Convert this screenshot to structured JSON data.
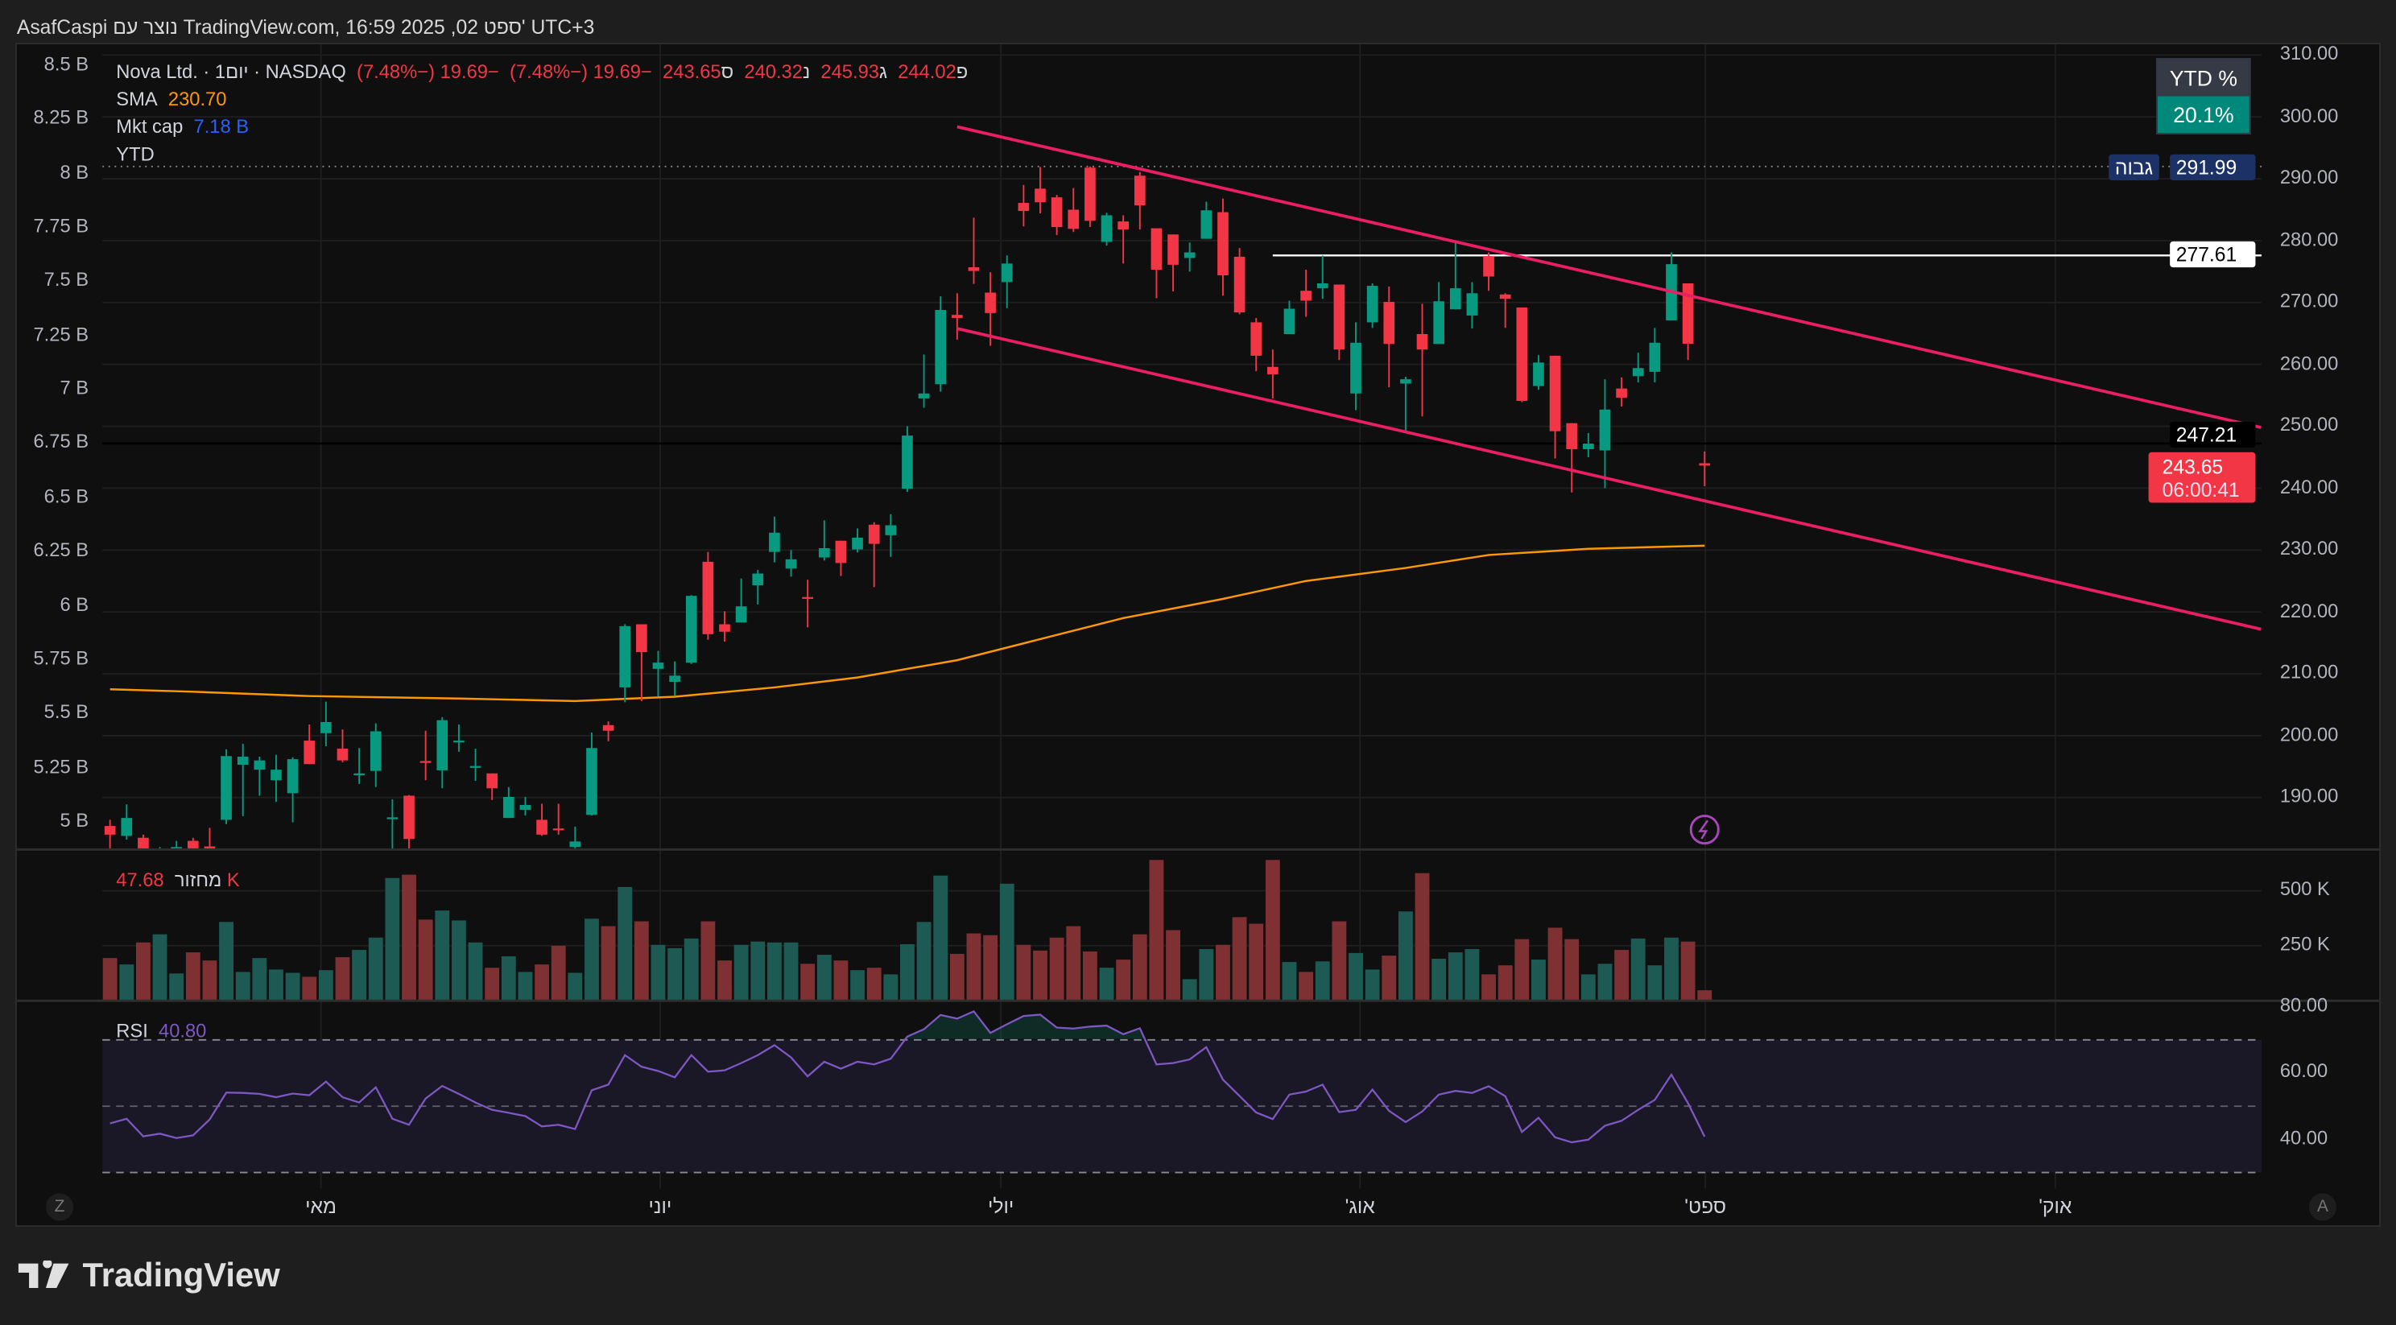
{
  "header": {
    "caption": "AsafCaspi נוצר עם TradingView.com, 16:59 2025 ,02 ספט' UTC+3"
  },
  "legend": {
    "symbol": "Nova Ltd. · 1יום · NASDAQ",
    "open_label": "פ",
    "open": "244.02",
    "high_label": "ג",
    "high": "245.93",
    "low_label": "נ",
    "low": "240.32",
    "close_label": "ס",
    "close": "243.65",
    "change": "−19.69 (−7.48%)",
    "change2": "−19.69 (−7.48%)",
    "sma_label": "SMA",
    "sma_value": "230.70",
    "mktcap_label": "Mkt cap",
    "mktcap_value": "7.18 B",
    "ytd_label": "YTD"
  },
  "ytd_box": {
    "title": "YTD %",
    "value": "20.1%"
  },
  "price_labels": {
    "high_tag": "גבוה",
    "high_value": "291.99",
    "hline_value": "277.61",
    "channel_value": "247.21",
    "last_price": "243.65",
    "countdown": "06:00:41"
  },
  "left_axis": [
    "8.5 B",
    "8.25 B",
    "8 B",
    "7.75 B",
    "7.5 B",
    "7.25 B",
    "7 B",
    "6.75 B",
    "6.5 B",
    "6.25 B",
    "6 B",
    "5.75 B",
    "5.5 B",
    "5.25 B",
    "5 B"
  ],
  "right_axis": [
    "310.00",
    "300.00",
    "290.00",
    "280.00",
    "270.00",
    "260.00",
    "250.00",
    "240.00",
    "230.00",
    "220.00",
    "210.00",
    "200.00",
    "190.00"
  ],
  "volume_pane": {
    "label": "מחזור",
    "value": "47.68 K",
    "axis": [
      "500 K",
      "250 K"
    ]
  },
  "rsi_pane": {
    "label": "RSI",
    "value": "40.80",
    "axis": [
      "80.00",
      "60.00",
      "40.00"
    ]
  },
  "time_axis": [
    "מאי",
    "יוני",
    "יולי",
    "אוג'",
    "ספט'",
    "אוק'"
  ],
  "corner_buttons": {
    "left": "Z",
    "right": "A"
  },
  "brand": "TradingView",
  "colors": {
    "up": "#089981",
    "down": "#f23645",
    "sma": "#ff9800",
    "rsi": "#7e57c2",
    "trend": "#e91e63",
    "vol_up": "#1d5a53",
    "vol_down": "#7f3032"
  },
  "chart_data": {
    "type": "candlestick",
    "title": "Nova Ltd. · 1D · NASDAQ",
    "ylim": [
      185,
      310
    ],
    "open": [
      185.4,
      183.8,
      183.5,
      179.5,
      180.5,
      183.0,
      182.1,
      186.4,
      195.3,
      194.5,
      192.8,
      190.7,
      199.2,
      200.4,
      197.9,
      193.8,
      194.3,
      186.7,
      190.3,
      195.9,
      194.4,
      199.1,
      195.0,
      193.9,
      186.7,
      188.0,
      186.4,
      185.0,
      182.0,
      187.2,
      201.7,
      207.8,
      218.0,
      210.8,
      208.7,
      211.8,
      228.1,
      218.0,
      218.3,
      224.3,
      229.7,
      227.0,
      222.4,
      228.8,
      231.5,
      230.1,
      234.1,
      232.4,
      239.9,
      254.5,
      256.8,
      268.0,
      275.7,
      271.6,
      273.3,
      286.1,
      288.4,
      287.0,
      285.0,
      291.8,
      279.8,
      283.1,
      290.5,
      282.0,
      281.0,
      277.2,
      280.3,
      284.6,
      277.4,
      266.8,
      259.6,
      264.9,
      271.9,
      272.3,
      272.9,
      255.3,
      266.8,
      270.1,
      256.9,
      264.9,
      263.3,
      268.9,
      267.9,
      277.5,
      271.3,
      269.2,
      256.5,
      261.4,
      250.5,
      246.3,
      246.1,
      256.1,
      258.1,
      258.8,
      267.1,
      273.1,
      244.02
    ],
    "high": [
      186.4,
      188.9,
      184.0,
      182.0,
      183.0,
      183.5,
      185.1,
      197.8,
      198.7,
      196.6,
      196.9,
      196.5,
      201.8,
      205.5,
      201.0,
      198.0,
      202.0,
      189.7,
      190.4,
      200.8,
      203.0,
      201.8,
      197.9,
      193.9,
      191.7,
      190.1,
      189.0,
      189.0,
      185.3,
      200.5,
      202.3,
      218.0,
      218.0,
      213.7,
      212.0,
      222.7,
      229.7,
      220.1,
      225.4,
      226.8,
      235.4,
      230.0,
      225.2,
      234.8,
      231.5,
      233.5,
      234.5,
      235.8,
      250.0,
      261.6,
      271.0,
      271.5,
      283.7,
      274.9,
      277.6,
      289.0,
      291.9,
      287.4,
      288.5,
      291.99,
      284.5,
      284.1,
      291.1,
      282.0,
      281.0,
      279.7,
      286.3,
      286.8,
      278.8,
      267.5,
      262.4,
      270.3,
      275.3,
      277.6,
      272.9,
      266.8,
      273.1,
      272.6,
      258.0,
      269.8,
      273.3,
      279.7,
      273.3,
      278.1,
      271.5,
      269.2,
      261.5,
      261.4,
      250.5,
      248.9,
      257.6,
      257.9,
      261.9,
      265.9,
      278.1,
      273.1,
      245.93
    ],
    "low": [
      181.5,
      183.2,
      179.0,
      178.5,
      180.0,
      180.0,
      181.5,
      185.7,
      187.0,
      190.3,
      189.3,
      186.0,
      195.4,
      198.3,
      195.7,
      192.2,
      191.7,
      181.0,
      181.0,
      192.8,
      191.5,
      197.4,
      192.7,
      189.6,
      186.7,
      187.1,
      183.8,
      184.0,
      181.0,
      187.1,
      199.1,
      205.4,
      205.6,
      206.3,
      206.4,
      211.6,
      215.5,
      215.2,
      218.3,
      221.2,
      228.0,
      225.7,
      217.5,
      228.3,
      225.8,
      229.6,
      224.0,
      228.9,
      239.4,
      253.0,
      255.6,
      264.0,
      273.0,
      263.0,
      269.1,
      282.3,
      284.4,
      280.9,
      281.4,
      282.2,
      279.2,
      276.3,
      281.8,
      270.7,
      271.8,
      275.0,
      280.3,
      271.1,
      268.1,
      258.9,
      254.5,
      264.9,
      267.7,
      270.6,
      260.7,
      252.6,
      265.9,
      256.3,
      248.9,
      251.6,
      263.3,
      268.9,
      265.8,
      271.9,
      265.9,
      253.9,
      255.9,
      244.8,
      239.3,
      245.0,
      240.0,
      253.2,
      257.1,
      257.1,
      267.1,
      260.7,
      240.32
    ],
    "close": [
      184.0,
      186.7,
      180.0,
      181.0,
      182.0,
      181.5,
      181.7,
      196.7,
      196.6,
      196.0,
      194.5,
      196.2,
      195.4,
      202.2,
      196.0,
      193.9,
      200.7,
      186.8,
      183.3,
      195.8,
      202.5,
      199.2,
      195.1,
      191.5,
      190.1,
      188.8,
      184.0,
      184.9,
      182.9,
      198.0,
      200.8,
      217.7,
      213.5,
      211.8,
      209.7,
      222.6,
      216.4,
      216.8,
      220.9,
      226.2,
      232.8,
      228.5,
      222.3,
      230.3,
      227.9,
      232.0,
      231.0,
      234.0,
      248.5,
      255.3,
      268.8,
      267.5,
      275.1,
      268.3,
      276.3,
      284.8,
      286.2,
      282.2,
      281.9,
      283.2,
      284.1,
      281.8,
      285.7,
      275.3,
      276.1,
      278.1,
      284.9,
      274.4,
      268.4,
      261.4,
      258.4,
      269.0,
      270.3,
      273.1,
      262.4,
      263.5,
      272.7,
      263.3,
      257.6,
      262.4,
      270.2,
      272.3,
      271.5,
      274.2,
      270.6,
      254.1,
      260.3,
      249.2,
      246.3,
      247.2,
      252.7,
      254.6,
      259.4,
      263.5,
      276.2,
      263.34,
      243.65
    ],
    "volume_k": [
      194,
      165,
      265,
      302,
      124,
      220,
      183,
      358,
      131,
      194,
      142,
      127,
      109,
      139,
      198,
      231,
      287,
      558,
      573,
      369,
      410,
      365,
      265,
      150,
      202,
      131,
      165,
      250,
      127,
      373,
      339,
      517,
      361,
      254,
      239,
      283,
      361,
      183,
      254,
      269,
      265,
      265,
      168,
      209,
      183,
      139,
      150,
      120,
      257,
      358,
      569,
      213,
      306,
      298,
      532,
      254,
      228,
      287,
      339,
      224,
      150,
      187,
      302,
      640,
      321,
      98,
      235,
      254,
      380,
      350,
      640,
      176,
      131,
      179,
      361,
      217,
      142,
      205,
      406,
      580,
      191,
      220,
      235,
      120,
      161,
      280,
      187,
      332,
      280,
      120,
      168,
      231,
      283,
      161,
      287,
      269,
      47.68
    ],
    "rsi": [
      44.8,
      46.2,
      40.9,
      41.7,
      40.4,
      41.2,
      46.0,
      54.1,
      54.0,
      53.7,
      52.7,
      53.8,
      53.3,
      57.4,
      52.7,
      51.1,
      55.7,
      46.2,
      44.4,
      52.3,
      56.1,
      53.7,
      51.1,
      48.9,
      48.0,
      47.0,
      43.9,
      44.4,
      43.1,
      54.8,
      56.5,
      65.4,
      61.9,
      60.6,
      58.7,
      65.4,
      60.4,
      60.8,
      63.0,
      65.4,
      68.4,
      64.7,
      59.0,
      63.4,
      61.3,
      63.4,
      62.6,
      64.3,
      71.0,
      73.2,
      77.5,
      76.4,
      78.6,
      72.1,
      74.7,
      77.2,
      77.6,
      73.7,
      73.4,
      74.0,
      74.3,
      71.7,
      73.5,
      62.6,
      63.0,
      64.1,
      67.8,
      58.0,
      53.1,
      48.1,
      46.1,
      53.5,
      54.4,
      56.5,
      48.2,
      48.9,
      55.0,
      48.6,
      45.2,
      48.4,
      53.5,
      54.6,
      54.0,
      56.0,
      53.0,
      42.2,
      46.5,
      40.6,
      39.1,
      39.9,
      44.1,
      45.6,
      48.9,
      51.9,
      59.5,
      50.9,
      40.8
    ],
    "sma": [
      [
        0,
        207.5
      ],
      [
        5,
        207.1
      ],
      [
        12,
        206.4
      ],
      [
        21,
        206.0
      ],
      [
        28,
        205.6
      ],
      [
        34,
        206.3
      ],
      [
        40,
        207.8
      ],
      [
        45,
        209.4
      ],
      [
        51,
        212.2
      ],
      [
        56,
        215.6
      ],
      [
        61,
        219.0
      ],
      [
        67,
        222.1
      ],
      [
        72,
        225.0
      ],
      [
        78,
        227.1
      ],
      [
        83,
        229.2
      ],
      [
        89,
        230.2
      ],
      [
        96,
        230.7
      ]
    ],
    "trend_upper": [
      [
        51,
        298.4
      ],
      [
        129.5,
        249.8
      ]
    ],
    "trend_lower": [
      [
        51,
        265.8
      ],
      [
        129.5,
        217.2
      ]
    ],
    "hline_277": {
      "from": 70,
      "price": 277.61
    },
    "hline_247": 247.21,
    "high_line": 291.99,
    "rsi_levels": [
      70,
      50,
      30
    ]
  }
}
